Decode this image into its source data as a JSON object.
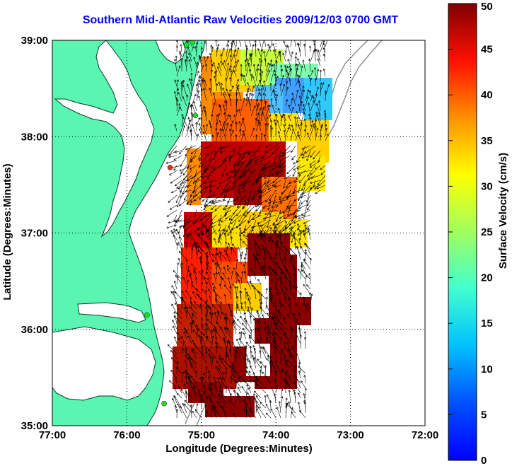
{
  "title": "Southern Mid-Atlantic Raw Velocities 2009/12/03 0700 GMT",
  "x_axis": {
    "label": "Longitude (Degrees:Minutes)",
    "ticks": [
      "77:00",
      "76:00",
      "75:00",
      "74:00",
      "73:00",
      "72:00"
    ]
  },
  "y_axis": {
    "label": "Latitude (Degrees:Minutes)",
    "ticks": [
      "39:00",
      "38:00",
      "37:00",
      "36:00",
      "35:00"
    ]
  },
  "colorbar": {
    "label": "Surface Velocity (cm/s)",
    "ticks": [
      "50",
      "45",
      "40",
      "35",
      "30",
      "25",
      "20",
      "15",
      "10",
      "5",
      "0"
    ],
    "range": [
      0,
      50
    ],
    "colormap": "jet"
  },
  "colors": {
    "land": "#5af5b0",
    "title": "#0000ff",
    "grid": "#000000",
    "stations": "#22dd22",
    "inactive_station": "#e0301e"
  },
  "map": {
    "lon_range": [
      -77,
      -72
    ],
    "lat_range": [
      35,
      39
    ],
    "grid": "dotted",
    "vectors": "black arrows",
    "stations": [
      {
        "lon": -75.12,
        "lat": 38.98,
        "status": "active"
      },
      {
        "lon": -75.2,
        "lat": 38.95,
        "status": "active"
      },
      {
        "lon": -75.08,
        "lat": 38.22,
        "status": "active"
      },
      {
        "lon": -75.42,
        "lat": 37.68,
        "status": "inactive"
      },
      {
        "lon": -75.73,
        "lat": 36.15,
        "status": "active"
      },
      {
        "lon": -75.5,
        "lat": 35.23,
        "status": "active"
      }
    ]
  }
}
